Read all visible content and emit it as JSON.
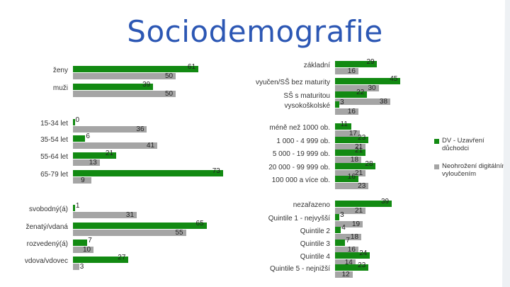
{
  "title": "Sociodemografie",
  "colors": {
    "series_green": "#128a12",
    "series_gray": "#a5a5a5",
    "title": "#2c57b4"
  },
  "chart_data": {
    "type": "bar",
    "orientation": "horizontal",
    "series": [
      {
        "name": "DV - Uzavření důchodci",
        "color": "#128a12"
      },
      {
        "name": "Neohrožení digitálním vyloučením",
        "color": "#a5a5a5"
      }
    ],
    "groups": [
      {
        "panel": "left",
        "categories": [
          "ženy",
          "muži"
        ],
        "green": [
          61,
          39
        ],
        "gray": [
          50,
          50
        ]
      },
      {
        "panel": "left",
        "categories": [
          "15-34 let",
          "35-54 let",
          "55-64 let",
          "65-79 let"
        ],
        "green": [
          0,
          6,
          21,
          73
        ],
        "gray": [
          36,
          41,
          13,
          9
        ]
      },
      {
        "panel": "left",
        "categories": [
          "svobodný(á)",
          "ženatý/vdaná",
          "rozvedený(á)",
          "vdova/vdovec"
        ],
        "green": [
          1,
          65,
          7,
          27
        ],
        "gray": [
          31,
          55,
          10,
          3
        ]
      },
      {
        "panel": "right",
        "categories": [
          "základní",
          "vyučen/SŠ bez maturity",
          "SŠ s maturitou",
          "vysokoškolské"
        ],
        "green": [
          29,
          45,
          22,
          3
        ],
        "gray": [
          16,
          30,
          38,
          16
        ]
      },
      {
        "panel": "right",
        "categories": [
          "méně než 1000 ob.",
          "1 000 - 4 999 ob.",
          "5 000 - 19 999 ob.",
          "20 000 - 99 999 ob.",
          "100 000 a více ob."
        ],
        "green": [
          11,
          23,
          21,
          28,
          16
        ],
        "gray": [
          17,
          21,
          18,
          21,
          23
        ]
      },
      {
        "panel": "right",
        "categories": [
          "nezařazeno",
          "Quintile 1 - nejvyšší",
          "Quintile 2",
          "Quintile 3",
          "Quintile 4",
          "Quintile 5 - nejnižší"
        ],
        "green": [
          39,
          3,
          4,
          7,
          24,
          23
        ],
        "gray": [
          21,
          19,
          18,
          16,
          14,
          12
        ]
      }
    ]
  }
}
